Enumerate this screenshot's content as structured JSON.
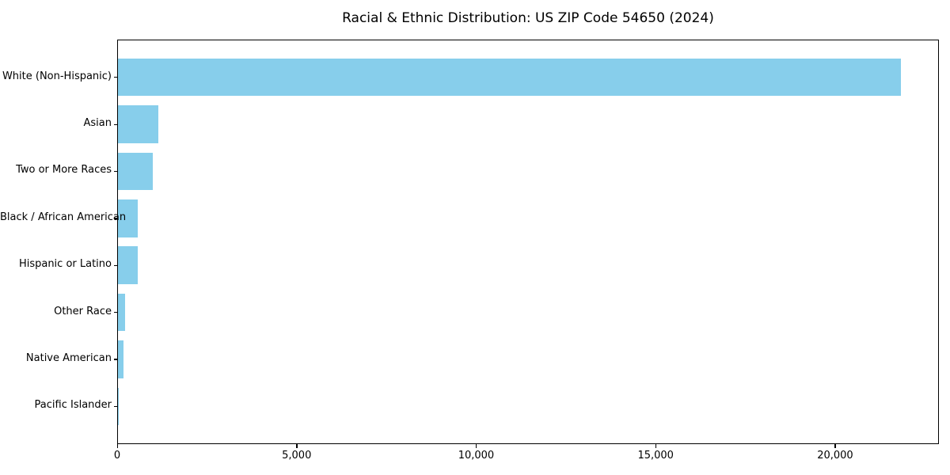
{
  "chart_data": {
    "type": "bar",
    "orientation": "horizontal",
    "title": "Racial & Ethnic Distribution: US ZIP Code 54650 (2024)",
    "categories": [
      "White (Non-Hispanic)",
      "Asian",
      "Two or More Races",
      "Black / African American",
      "Hispanic or Latino",
      "Other Race",
      "Native American",
      "Pacific Islander"
    ],
    "values": [
      21800,
      1120,
      975,
      560,
      555,
      190,
      155,
      10
    ],
    "xlabel": "",
    "ylabel": "",
    "xlim": [
      0,
      22890
    ],
    "xticks": [
      {
        "value": 0,
        "label": "0"
      },
      {
        "value": 5000,
        "label": "5,000"
      },
      {
        "value": 10000,
        "label": "10,000"
      },
      {
        "value": 15000,
        "label": "15,000"
      },
      {
        "value": 20000,
        "label": "20,000"
      }
    ],
    "bar_color": "#87CEEB",
    "background_color": "#FFFFFF",
    "axis_color": "#000000",
    "grid": false,
    "legend": null
  }
}
